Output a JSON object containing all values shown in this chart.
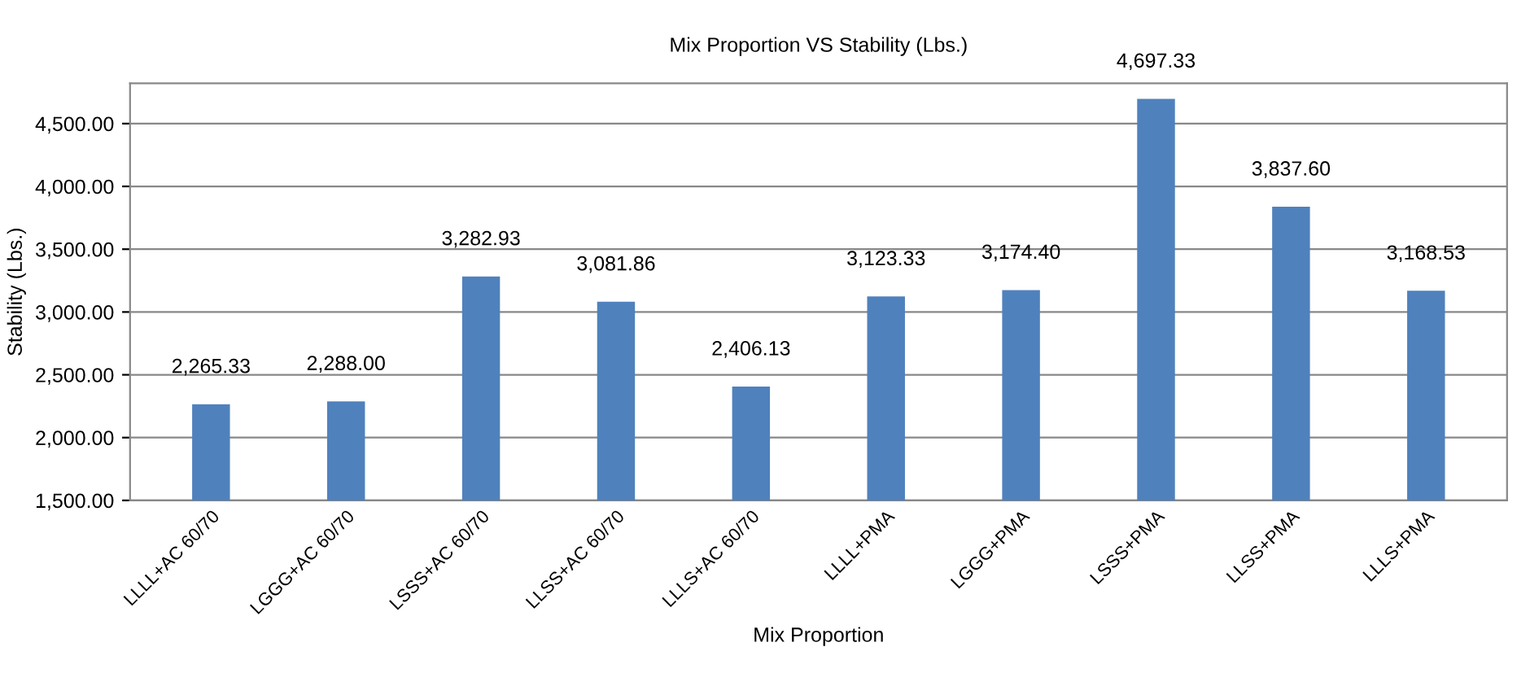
{
  "chart_data": {
    "type": "bar",
    "title": "Mix Proportion VS Stability (Lbs.)",
    "xlabel": "Mix Proportion",
    "ylabel": "Stability (Lbs.)",
    "categories": [
      "LLLL+AC 60/70",
      "LGGG+AC 60/70",
      "LSSS+AC 60/70",
      "LLSS+AC 60/70",
      "LLLS+AC 60/70",
      "LLLL+PMA",
      "LGGG+PMA",
      "LSSS+PMA",
      "LLSS+PMA",
      "LLLS+PMA"
    ],
    "values": [
      2265.33,
      2288.0,
      3282.93,
      3081.86,
      2406.13,
      3123.33,
      3174.4,
      4697.33,
      3837.6,
      3168.53
    ],
    "value_labels": [
      "2,265.33",
      "2,288.00",
      "3,282.93",
      "3,081.86",
      "2,406.13",
      "3,123.33",
      "3,174.40",
      "4,697.33",
      "3,837.60",
      "3,168.53"
    ],
    "color": "#4f81bd",
    "ylim": [
      1500,
      4820
    ],
    "yticks": [
      {
        "value": 1500,
        "label": "1,500.00"
      },
      {
        "value": 2000,
        "label": "2,000.00"
      },
      {
        "value": 2500,
        "label": "2,500.00"
      },
      {
        "value": 3000,
        "label": "3,000.00"
      },
      {
        "value": 3500,
        "label": "3,500.00"
      },
      {
        "value": 4000,
        "label": "4,000.00"
      },
      {
        "value": 4500,
        "label": "4,500.00"
      }
    ],
    "grid": "y",
    "legend": false
  }
}
